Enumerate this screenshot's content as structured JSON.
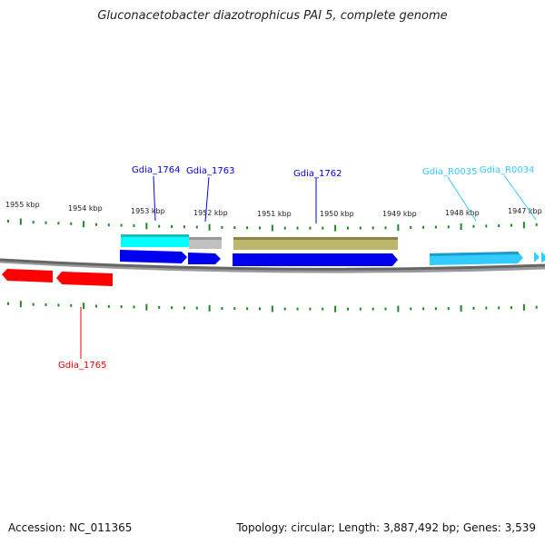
{
  "title": "Gluconacetobacter diazotrophicus PAI 5, complete genome",
  "footer": {
    "accession": "Accession: NC_011365",
    "summary": "Topology: circular; Length: 3,887,492 bp; Genes: 3,539"
  },
  "scale_labels": [
    "1955 kbp",
    "1954 kbp",
    "1953 kbp",
    "1952 kbp",
    "1951 kbp",
    "1950 kbp",
    "1949 kbp",
    "1948 kbp",
    "1947 kbp"
  ],
  "genes": [
    {
      "name": "Gdia_1764",
      "color": "#0000ee"
    },
    {
      "name": "Gdia_1763",
      "color": "#0000ee"
    },
    {
      "name": "Gdia_1762",
      "color": "#0000ee"
    },
    {
      "name": "Gdia_R0035",
      "color": "#33ccff"
    },
    {
      "name": "Gdia_R0034",
      "color": "#33ccff"
    },
    {
      "name": "Gdia_1765",
      "color": "#ee0000"
    }
  ],
  "colors": {
    "tick": "#228822",
    "backbone": "#777777",
    "cds_forward": "#0000ee",
    "cds_reverse": "#ff0000",
    "rna": "#33ccff"
  }
}
